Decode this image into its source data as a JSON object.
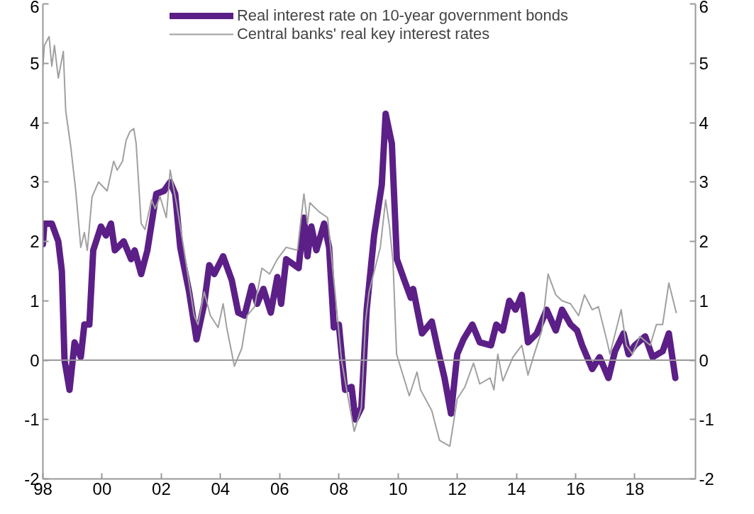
{
  "chart_data": {
    "type": "line",
    "xlim": [
      1998,
      2020.05
    ],
    "xticks": [
      {
        "value": 1998,
        "label": "98"
      },
      {
        "value": 2000,
        "label": "00"
      },
      {
        "value": 2002,
        "label": "02"
      },
      {
        "value": 2004,
        "label": "04"
      },
      {
        "value": 2006,
        "label": "06"
      },
      {
        "value": 2008,
        "label": "08"
      },
      {
        "value": 2010,
        "label": "10"
      },
      {
        "value": 2012,
        "label": "12"
      },
      {
        "value": 2014,
        "label": "14"
      },
      {
        "value": 2016,
        "label": "16"
      },
      {
        "value": 2018,
        "label": "18"
      }
    ],
    "ylim": [
      -2,
      6
    ],
    "yticks": [
      -2,
      -1,
      0,
      1,
      2,
      3,
      4,
      5,
      6
    ],
    "y2lim": [
      -2,
      6
    ],
    "y2ticks": [
      -2,
      -1,
      0,
      1,
      2,
      3,
      4,
      5,
      6
    ],
    "legend": "top",
    "grid": false,
    "marker": "none",
    "ref_lines": [
      {
        "axis": "y",
        "value": 0,
        "color": "#999999"
      }
    ],
    "series": [
      {
        "name": "Real interest rate on 10-year government bonds",
        "color": "#5b1f87",
        "x": [
          1998.0,
          1998.05,
          1998.3,
          1998.52,
          1998.64,
          1998.73,
          1998.9,
          1999.07,
          1999.28,
          1999.4,
          1999.57,
          1999.7,
          1999.96,
          2000.13,
          2000.3,
          2000.43,
          2000.73,
          2000.98,
          2001.1,
          2001.32,
          2001.53,
          2001.83,
          2002.09,
          2002.3,
          2002.47,
          2002.64,
          2002.94,
          2003.19,
          2003.45,
          2003.62,
          2003.79,
          2004.09,
          2004.38,
          2004.6,
          2004.81,
          2005.06,
          2005.24,
          2005.45,
          2005.7,
          2005.92,
          2006.05,
          2006.22,
          2006.64,
          2006.82,
          2006.94,
          2007.07,
          2007.24,
          2007.5,
          2007.67,
          2007.83,
          2008.0,
          2008.21,
          2008.43,
          2008.56,
          2008.76,
          2008.94,
          2009.19,
          2009.45,
          2009.58,
          2009.79,
          2009.96,
          2010.21,
          2010.43,
          2010.51,
          2010.81,
          2011.14,
          2011.36,
          2011.57,
          2011.79,
          2012.0,
          2012.21,
          2012.51,
          2012.76,
          2013.14,
          2013.32,
          2013.54,
          2013.76,
          2013.97,
          2014.18,
          2014.39,
          2014.69,
          2015.02,
          2015.33,
          2015.54,
          2015.83,
          2016.05,
          2016.22,
          2016.56,
          2016.81,
          2017.11,
          2017.33,
          2017.62,
          2017.79,
          2018.0,
          2018.35,
          2018.6,
          2018.94,
          2019.15,
          2019.37
        ],
        "values": [
          1.95,
          2.3,
          2.3,
          2.0,
          1.5,
          0.0,
          -0.5,
          0.3,
          0.05,
          0.6,
          0.6,
          1.85,
          2.25,
          2.1,
          2.3,
          1.85,
          2.0,
          1.7,
          1.85,
          1.45,
          1.85,
          2.8,
          2.85,
          3.0,
          2.8,
          1.9,
          1.15,
          0.35,
          0.95,
          1.6,
          1.45,
          1.75,
          1.35,
          0.8,
          0.75,
          1.25,
          0.95,
          1.2,
          0.8,
          1.4,
          0.95,
          1.7,
          1.55,
          2.4,
          1.75,
          2.25,
          1.85,
          2.3,
          1.9,
          0.55,
          0.6,
          -0.5,
          -0.45,
          -1.0,
          -0.8,
          0.85,
          2.1,
          2.95,
          4.15,
          3.65,
          1.7,
          1.35,
          1.05,
          1.2,
          0.45,
          0.65,
          0.15,
          -0.3,
          -0.9,
          0.1,
          0.35,
          0.6,
          0.3,
          0.25,
          0.6,
          0.5,
          1.0,
          0.85,
          1.1,
          0.3,
          0.45,
          0.85,
          0.5,
          0.85,
          0.6,
          0.5,
          0.25,
          -0.15,
          0.05,
          -0.3,
          0.15,
          0.45,
          0.1,
          0.25,
          0.4,
          0.05,
          0.15,
          0.45,
          -0.3
        ]
      },
      {
        "name": "Central banks' real key interest rates",
        "color": "#a0a0a0",
        "x": [
          1998.0,
          1998.05,
          1998.21,
          1998.3,
          1998.39,
          1998.52,
          1998.69,
          1998.77,
          1998.94,
          1999.11,
          1999.28,
          1999.4,
          1999.5,
          1999.66,
          1999.88,
          2000.17,
          2000.39,
          2000.51,
          2000.69,
          2000.81,
          2000.94,
          2001.07,
          2001.15,
          2001.32,
          2001.45,
          2001.67,
          2001.79,
          2001.96,
          2002.17,
          2002.3,
          2002.51,
          2002.77,
          2003.11,
          2003.24,
          2003.45,
          2003.66,
          2003.92,
          2004.09,
          2004.21,
          2004.47,
          2004.72,
          2004.9,
          2005.15,
          2005.4,
          2005.66,
          2005.92,
          2006.22,
          2006.6,
          2006.82,
          2006.94,
          2007.02,
          2007.33,
          2007.62,
          2007.88,
          2008.09,
          2008.3,
          2008.52,
          2008.76,
          2008.9,
          2009.02,
          2009.4,
          2009.58,
          2009.71,
          2009.83,
          2009.95,
          2010.38,
          2010.64,
          2010.76,
          2011.14,
          2011.4,
          2011.75,
          2012.0,
          2012.26,
          2012.55,
          2012.76,
          2013.11,
          2013.24,
          2013.37,
          2013.54,
          2013.88,
          2014.18,
          2014.39,
          2014.6,
          2014.86,
          2015.07,
          2015.33,
          2015.54,
          2015.83,
          2016.1,
          2016.3,
          2016.56,
          2016.77,
          2017.07,
          2017.16,
          2017.54,
          2017.71,
          2017.92,
          2018.17,
          2018.52,
          2018.73,
          2018.94,
          2019.15,
          2019.4
        ],
        "values": [
          4.95,
          5.3,
          5.45,
          4.95,
          5.3,
          4.75,
          5.2,
          4.2,
          3.6,
          2.85,
          1.9,
          2.15,
          1.85,
          2.75,
          3.0,
          2.85,
          3.35,
          3.2,
          3.35,
          3.7,
          3.85,
          3.9,
          3.65,
          2.3,
          2.2,
          2.7,
          2.55,
          2.75,
          2.4,
          3.2,
          2.65,
          1.85,
          0.75,
          0.6,
          1.15,
          0.75,
          0.55,
          0.95,
          0.55,
          -0.1,
          0.2,
          0.75,
          0.9,
          1.55,
          1.45,
          1.7,
          1.9,
          1.85,
          2.8,
          2.3,
          2.65,
          2.5,
          2.4,
          1.1,
          0.0,
          -0.6,
          -1.2,
          -0.8,
          0.65,
          1.15,
          1.9,
          2.7,
          2.25,
          1.65,
          0.1,
          -0.6,
          -0.2,
          -0.5,
          -0.85,
          -1.35,
          -1.45,
          -0.65,
          -0.45,
          -0.05,
          -0.4,
          -0.3,
          -0.5,
          0.1,
          -0.35,
          0.05,
          0.25,
          -0.25,
          0.1,
          0.5,
          1.45,
          1.1,
          1.0,
          0.95,
          0.75,
          1.1,
          0.85,
          0.9,
          0.3,
          0.1,
          0.85,
          0.25,
          0.1,
          0.4,
          0.25,
          0.6,
          0.6,
          1.3,
          0.8
        ]
      }
    ]
  }
}
